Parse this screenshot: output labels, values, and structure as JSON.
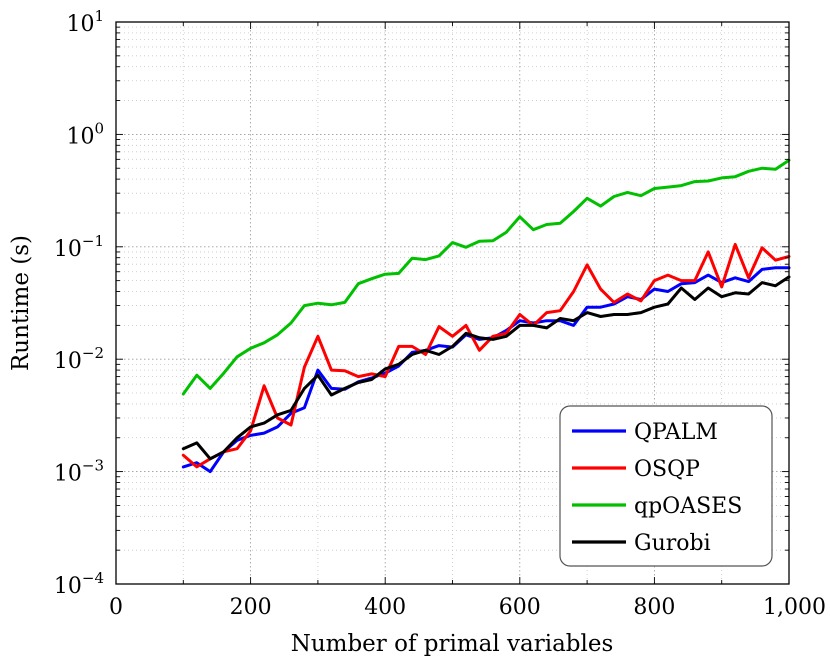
{
  "chart_data": {
    "type": "line",
    "xlabel": "Number of primal variables",
    "ylabel": "Runtime (s)",
    "xlim": [
      0,
      1000
    ],
    "ylim": [
      0.0001,
      10
    ],
    "yscale": "log",
    "grid": true,
    "legend_position": "bottom-right",
    "x_ticks": [
      {
        "value": 0,
        "label": "0"
      },
      {
        "value": 200,
        "label": "200"
      },
      {
        "value": 400,
        "label": "400"
      },
      {
        "value": 600,
        "label": "600"
      },
      {
        "value": 800,
        "label": "800"
      },
      {
        "value": 1000,
        "label": "1,000"
      }
    ],
    "y_ticks": [
      {
        "value": 10,
        "base": "10",
        "exp": "1"
      },
      {
        "value": 1,
        "base": "10",
        "exp": "0"
      },
      {
        "value": 0.1,
        "base": "10",
        "exp": "−1"
      },
      {
        "value": 0.01,
        "base": "10",
        "exp": "−2"
      },
      {
        "value": 0.001,
        "base": "10",
        "exp": "−3"
      },
      {
        "value": 0.0001,
        "base": "10",
        "exp": "−4"
      }
    ],
    "x": [
      100,
      120,
      140,
      160,
      180,
      200,
      220,
      240,
      260,
      280,
      300,
      320,
      340,
      360,
      380,
      400,
      420,
      440,
      460,
      480,
      500,
      520,
      540,
      560,
      580,
      600,
      620,
      640,
      660,
      680,
      700,
      720,
      740,
      760,
      780,
      800,
      820,
      840,
      860,
      880,
      900,
      920,
      940,
      960,
      980,
      1000
    ],
    "series": [
      {
        "name": "QPALM",
        "color": "#0000ff",
        "values": [
          0.0011,
          0.0012,
          0.001,
          0.0015,
          0.0019,
          0.0021,
          0.0022,
          0.0025,
          0.0033,
          0.0037,
          0.008,
          0.0055,
          0.0054,
          0.0063,
          0.0068,
          0.0075,
          0.0087,
          0.0115,
          0.012,
          0.0132,
          0.0128,
          0.0165,
          0.015,
          0.0155,
          0.018,
          0.022,
          0.021,
          0.022,
          0.022,
          0.02,
          0.029,
          0.029,
          0.031,
          0.036,
          0.034,
          0.042,
          0.04,
          0.047,
          0.048,
          0.056,
          0.048,
          0.053,
          0.049,
          0.063,
          0.065,
          0.065
        ]
      },
      {
        "name": "OSQP",
        "color": "#ff0000",
        "values": [
          0.0014,
          0.0011,
          0.0013,
          0.0015,
          0.0016,
          0.0023,
          0.0058,
          0.003,
          0.0026,
          0.0085,
          0.016,
          0.008,
          0.0079,
          0.007,
          0.0074,
          0.007,
          0.013,
          0.013,
          0.011,
          0.0195,
          0.016,
          0.02,
          0.012,
          0.016,
          0.017,
          0.025,
          0.02,
          0.026,
          0.027,
          0.04,
          0.069,
          0.042,
          0.032,
          0.038,
          0.033,
          0.05,
          0.056,
          0.05,
          0.05,
          0.09,
          0.044,
          0.105,
          0.053,
          0.098,
          0.076,
          0.082
        ]
      },
      {
        "name": "qpOASES",
        "color": "#00c000",
        "values": [
          0.0049,
          0.0072,
          0.0055,
          0.0075,
          0.0105,
          0.0125,
          0.014,
          0.0165,
          0.021,
          0.03,
          0.0315,
          0.0305,
          0.032,
          0.047,
          0.052,
          0.057,
          0.058,
          0.079,
          0.077,
          0.083,
          0.109,
          0.099,
          0.112,
          0.113,
          0.135,
          0.185,
          0.142,
          0.158,
          0.162,
          0.206,
          0.27,
          0.23,
          0.28,
          0.305,
          0.285,
          0.33,
          0.34,
          0.35,
          0.38,
          0.385,
          0.41,
          0.42,
          0.47,
          0.5,
          0.49,
          0.59
        ]
      },
      {
        "name": "Gurobi",
        "color": "#000000",
        "values": [
          0.0016,
          0.0018,
          0.0013,
          0.0015,
          0.002,
          0.0025,
          0.0027,
          0.0032,
          0.0035,
          0.0055,
          0.0072,
          0.0048,
          0.0055,
          0.0062,
          0.0066,
          0.0082,
          0.009,
          0.011,
          0.012,
          0.011,
          0.013,
          0.017,
          0.0155,
          0.015,
          0.016,
          0.02,
          0.02,
          0.019,
          0.023,
          0.022,
          0.026,
          0.024,
          0.025,
          0.025,
          0.026,
          0.029,
          0.031,
          0.043,
          0.034,
          0.043,
          0.036,
          0.039,
          0.038,
          0.048,
          0.045,
          0.054
        ]
      }
    ]
  }
}
